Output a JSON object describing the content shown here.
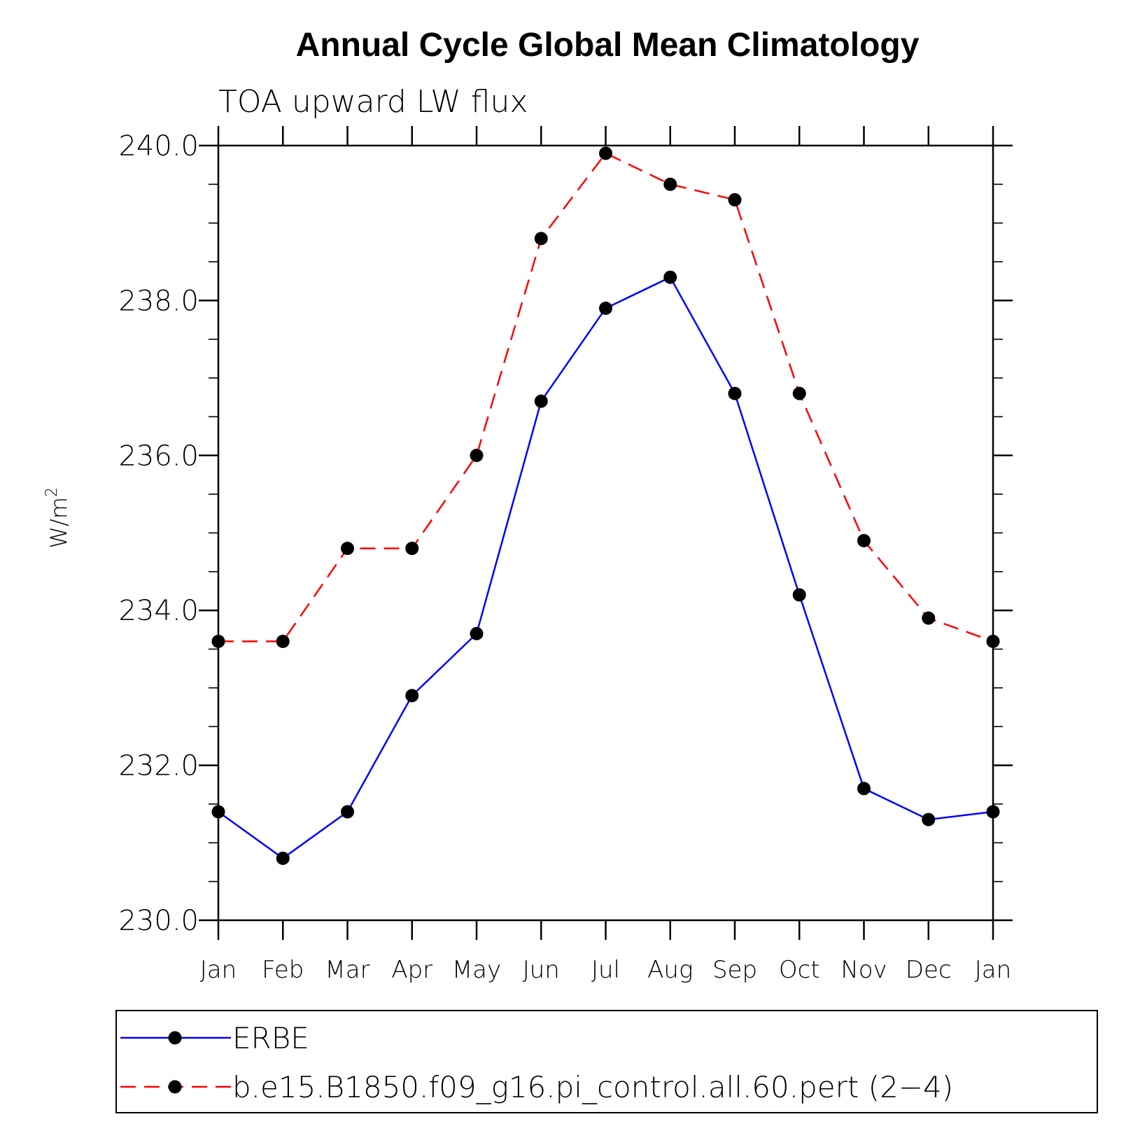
{
  "chart_data": {
    "type": "line",
    "title": "Annual Cycle Global Mean Climatology",
    "subtitle": "TOA upward LW flux",
    "ylabel": "W/m",
    "ylabel_superscript": "2",
    "ylim": [
      230,
      240
    ],
    "yticks": [
      "230.0",
      "232.0",
      "234.0",
      "236.0",
      "238.0",
      "240.0"
    ],
    "categories": [
      "Jan",
      "Feb",
      "Mar",
      "Apr",
      "May",
      "Jun",
      "Jul",
      "Aug",
      "Sep",
      "Oct",
      "Nov",
      "Dec",
      "Jan"
    ],
    "series": [
      {
        "name": "ERBE",
        "color": "#0000ff",
        "dash": "solid",
        "values": [
          231.4,
          230.8,
          231.4,
          232.9,
          233.7,
          236.7,
          237.9,
          238.3,
          236.8,
          234.2,
          231.7,
          231.3,
          231.4
        ]
      },
      {
        "name": "b.e15.B1850.f09_g16.pi_control.all.60.pert (2−4)",
        "color": "#ff0000",
        "dash": "dashed",
        "values": [
          233.6,
          233.6,
          234.8,
          234.8,
          236.0,
          238.8,
          239.9,
          239.5,
          239.3,
          236.8,
          234.9,
          233.9,
          233.6
        ]
      }
    ],
    "grid": false,
    "legend_position": "bottom"
  }
}
